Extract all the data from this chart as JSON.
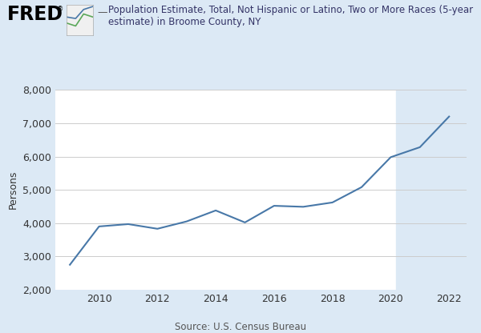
{
  "years": [
    2009,
    2010,
    2011,
    2012,
    2013,
    2014,
    2015,
    2016,
    2017,
    2018,
    2019,
    2020,
    2021,
    2022
  ],
  "values": [
    2750,
    3900,
    3970,
    3830,
    4050,
    4380,
    4020,
    4520,
    4490,
    4620,
    5080,
    5980,
    6280,
    7200
  ],
  "line_color": "#4878a8",
  "line_width": 1.5,
  "ylabel": "Persons",
  "source": "Source: U.S. Census Bureau",
  "ylim": [
    2000,
    8000
  ],
  "yticks": [
    2000,
    3000,
    4000,
    5000,
    6000,
    7000,
    8000
  ],
  "xlim": [
    2008.5,
    2022.6
  ],
  "xticks": [
    2010,
    2012,
    2014,
    2016,
    2018,
    2020,
    2022
  ],
  "plot_bg": "#ffffff",
  "outer_bg": "#dce9f5",
  "shade_color": "#dce9f5",
  "shade_start": 2020.17,
  "shade_end": 2022.6,
  "legend_line_color": "#4878a8",
  "legend_label": "Population Estimate, Total, Not Hispanic or Latino, Two or More Races (5-year\nestimate) in Broome County, NY",
  "fred_text": "FRED",
  "fred_fontsize": 17,
  "legend_fontsize": 8.5,
  "ylabel_fontsize": 9,
  "tick_fontsize": 9,
  "source_fontsize": 8.5
}
